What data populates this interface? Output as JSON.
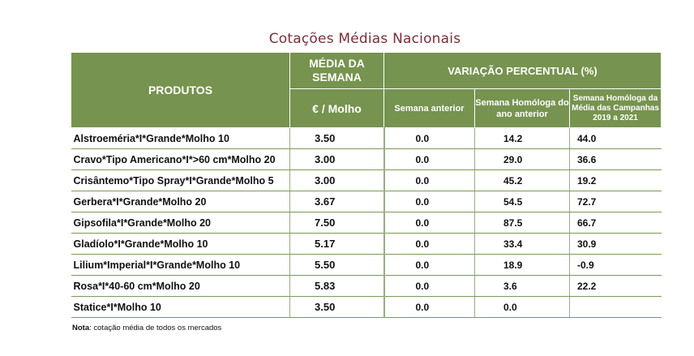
{
  "title": "Cotações Médias Nacionais",
  "headers": {
    "produtos": "PRODUTOS",
    "media_semana": "MÉDIA DA SEMANA",
    "variacao": "VARIAÇÃO PERCENTUAL (%)",
    "unit": "€ / Molho",
    "semana_anterior": "Semana anterior",
    "homologa_ano": "Semana Homóloga do ano anterior",
    "homologa_campanhas": "Semana Homóloga da Média das Campanhas 2019 a 2021"
  },
  "rows": [
    {
      "produto": "Alstroeméria*I*Grande*Molho 10",
      "media": "3.50",
      "anterior": "0.0",
      "ano_anterior": "14.2",
      "campanhas": "44.0"
    },
    {
      "produto": "Cravo*Tipo Americano*I*>60 cm*Molho 20",
      "media": "3.00",
      "anterior": "0.0",
      "ano_anterior": "29.0",
      "campanhas": "36.6"
    },
    {
      "produto": "Crisântemo*Tipo Spray*I*Grande*Molho 5",
      "media": "3.00",
      "anterior": "0.0",
      "ano_anterior": "45.2",
      "campanhas": "19.2"
    },
    {
      "produto": "Gerbera*I*Grande*Molho 20",
      "media": "3.67",
      "anterior": "0.0",
      "ano_anterior": "54.5",
      "campanhas": "72.7"
    },
    {
      "produto": "Gipsofila*I*Grande*Molho 20",
      "media": "7.50",
      "anterior": "0.0",
      "ano_anterior": "87.5",
      "campanhas": "66.7"
    },
    {
      "produto": "Gladíolo*I*Grande*Molho 10",
      "media": "5.17",
      "anterior": "0.0",
      "ano_anterior": "33.4",
      "campanhas": "30.9"
    },
    {
      "produto": "Lilium*Imperial*I*Grande*Molho 10",
      "media": "5.50",
      "anterior": "0.0",
      "ano_anterior": "18.9",
      "campanhas": "-0.9"
    },
    {
      "produto": "Rosa*I*40-60 cm*Molho 20",
      "media": "5.83",
      "anterior": "0.0",
      "ano_anterior": "3.6",
      "campanhas": "22.2"
    },
    {
      "produto": "Statice*I*Molho 10",
      "media": "3.50",
      "anterior": "0.0",
      "ano_anterior": "0.0",
      "campanhas": ""
    }
  ],
  "note": {
    "label": "Nota",
    "text": ": cotação média de todos os mercados"
  }
}
